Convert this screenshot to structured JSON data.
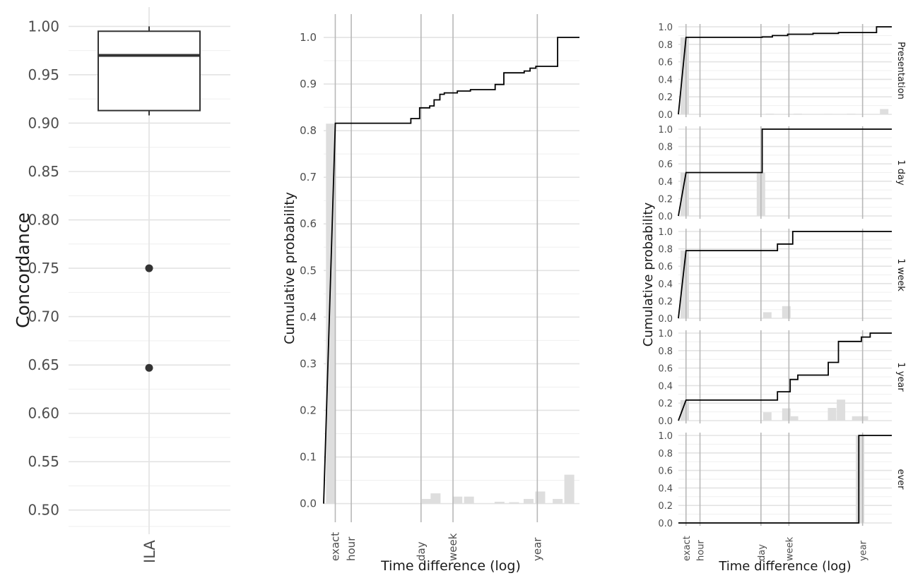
{
  "chart_data": [
    {
      "type": "box",
      "categories": [
        "ILA"
      ],
      "ylabel": "Concordance",
      "xlabel": "",
      "ylim": [
        0.475,
        1.02
      ],
      "yticks": [
        0.5,
        0.55,
        0.6,
        0.65,
        0.7,
        0.75,
        0.8,
        0.85,
        0.9,
        0.95,
        1.0
      ],
      "ytick_labels": [
        "0.50",
        "0.55",
        "0.60",
        "0.65",
        "0.70",
        "0.75",
        "0.80",
        "0.85",
        "0.90",
        "0.95",
        "1.00"
      ],
      "box": {
        "whisker_low": 0.908,
        "q1": 0.913,
        "median": 0.97,
        "q3": 0.995,
        "whisker_high": 1.0
      },
      "outliers": [
        0.75,
        0.647
      ],
      "grid": true
    },
    {
      "type": "line",
      "style": "step",
      "xlabel": "Time difference (log)",
      "ylabel": "Cumulative probability",
      "x_scale": "log",
      "x_ticks": [
        "exact",
        "hour",
        "day",
        "week",
        "year"
      ],
      "ylim": [
        -0.04,
        1.05
      ],
      "yticks": [
        0.0,
        0.1,
        0.2,
        0.3,
        0.4,
        0.5,
        0.6,
        0.7,
        0.8,
        0.9,
        1.0
      ],
      "ytick_labels": [
        "0.0",
        "0.1",
        "0.2",
        "0.3",
        "0.4",
        "0.5",
        "0.6",
        "0.7",
        "0.8",
        "0.9",
        "1.0"
      ],
      "step": [
        [
          -0.4,
          0.0
        ],
        [
          0.0,
          0.816
        ],
        [
          2.6,
          0.816
        ],
        [
          2.6,
          0.826
        ],
        [
          2.9,
          0.826
        ],
        [
          2.9,
          0.849
        ],
        [
          3.25,
          0.849
        ],
        [
          3.25,
          0.853
        ],
        [
          3.4,
          0.853
        ],
        [
          3.4,
          0.866
        ],
        [
          3.6,
          0.866
        ],
        [
          3.6,
          0.878
        ],
        [
          3.75,
          0.878
        ],
        [
          3.75,
          0.881
        ],
        [
          4.2,
          0.881
        ],
        [
          4.2,
          0.885
        ],
        [
          4.65,
          0.885
        ],
        [
          4.65,
          0.888
        ],
        [
          5.5,
          0.888
        ],
        [
          5.5,
          0.899
        ],
        [
          5.8,
          0.899
        ],
        [
          5.8,
          0.924
        ],
        [
          6.5,
          0.924
        ],
        [
          6.5,
          0.928
        ],
        [
          6.7,
          0.928
        ],
        [
          6.7,
          0.934
        ],
        [
          6.9,
          0.934
        ],
        [
          6.9,
          0.938
        ],
        [
          7.65,
          0.938
        ],
        [
          7.65,
          1.0
        ],
        [
          8.4,
          1.0
        ]
      ],
      "density_bars": [
        [
          -0.15,
          0.815
        ],
        [
          3.15,
          0.01
        ],
        [
          3.45,
          0.022
        ],
        [
          4.2,
          0.015
        ],
        [
          4.6,
          0.015
        ],
        [
          5.65,
          0.004
        ],
        [
          6.15,
          0.003
        ],
        [
          6.65,
          0.01
        ],
        [
          7.05,
          0.026
        ],
        [
          7.65,
          0.01
        ],
        [
          8.05,
          0.062
        ]
      ],
      "grid": true
    },
    {
      "type": "line",
      "style": "step",
      "facets": [
        "Presentation",
        "1 day",
        "1 week",
        "1 year",
        "ever"
      ],
      "xlabel": "Time difference (log)",
      "ylabel": "Cumulative probability",
      "x_scale": "log",
      "x_ticks": [
        "exact",
        "hour",
        "day",
        "week",
        "year"
      ],
      "yticks": [
        0.0,
        0.2,
        0.4,
        0.6,
        0.8,
        1.0
      ],
      "ytick_labels": [
        "0.0",
        "0.2",
        "0.4",
        "0.6",
        "0.8",
        "1.0"
      ],
      "series": [
        {
          "step": [
            [
              -0.3,
              0.0
            ],
            [
              0.0,
              0.88
            ],
            [
              3.0,
              0.88
            ],
            [
              3.0,
              0.885
            ],
            [
              3.4,
              0.885
            ],
            [
              3.4,
              0.9
            ],
            [
              4.0,
              0.9
            ],
            [
              4.0,
              0.915
            ],
            [
              5.0,
              0.915
            ],
            [
              5.0,
              0.925
            ],
            [
              6.0,
              0.925
            ],
            [
              6.0,
              0.935
            ],
            [
              7.5,
              0.935
            ],
            [
              7.5,
              1.0
            ],
            [
              8.1,
              1.0
            ]
          ],
          "density_bars": [
            [
              -0.05,
              0.88
            ],
            [
              3.3,
              0.008
            ],
            [
              4.4,
              0.008
            ],
            [
              5.6,
              0.005
            ],
            [
              6.5,
              0.007
            ],
            [
              7.8,
              0.06
            ]
          ]
        },
        {
          "step": [
            [
              -0.3,
              0.0
            ],
            [
              0.0,
              0.5
            ],
            [
              3.0,
              0.5
            ],
            [
              3.0,
              1.0
            ],
            [
              8.1,
              1.0
            ]
          ],
          "density_bars": [
            [
              -0.05,
              0.5
            ],
            [
              2.95,
              0.5
            ]
          ]
        },
        {
          "step": [
            [
              -0.3,
              0.0
            ],
            [
              0.0,
              0.78
            ],
            [
              3.6,
              0.78
            ],
            [
              3.6,
              0.855
            ],
            [
              4.2,
              0.855
            ],
            [
              4.2,
              1.0
            ],
            [
              8.1,
              1.0
            ]
          ],
          "density_bars": [
            [
              -0.05,
              0.78
            ],
            [
              3.2,
              0.07
            ],
            [
              3.95,
              0.14
            ]
          ]
        },
        {
          "step": [
            [
              -0.3,
              0.0
            ],
            [
              0.0,
              0.235
            ],
            [
              3.6,
              0.235
            ],
            [
              3.6,
              0.33
            ],
            [
              4.1,
              0.33
            ],
            [
              4.1,
              0.47
            ],
            [
              4.4,
              0.47
            ],
            [
              4.4,
              0.52
            ],
            [
              5.6,
              0.52
            ],
            [
              5.6,
              0.665
            ],
            [
              6.0,
              0.665
            ],
            [
              6.0,
              0.905
            ],
            [
              6.9,
              0.905
            ],
            [
              6.9,
              0.955
            ],
            [
              7.25,
              0.955
            ],
            [
              7.25,
              1.0
            ],
            [
              8.1,
              1.0
            ]
          ],
          "density_bars": [
            [
              -0.05,
              0.235
            ],
            [
              3.2,
              0.095
            ],
            [
              3.95,
              0.14
            ],
            [
              4.25,
              0.05
            ],
            [
              5.75,
              0.145
            ],
            [
              6.1,
              0.24
            ],
            [
              6.7,
              0.05
            ],
            [
              7.0,
              0.05
            ]
          ]
        },
        {
          "step": [
            [
              -0.3,
              0.0
            ],
            [
              6.8,
              0.0
            ],
            [
              6.8,
              1.0
            ],
            [
              8.1,
              1.0
            ]
          ],
          "density_bars": [
            [
              6.85,
              1.0
            ]
          ]
        }
      ],
      "grid": true
    }
  ]
}
